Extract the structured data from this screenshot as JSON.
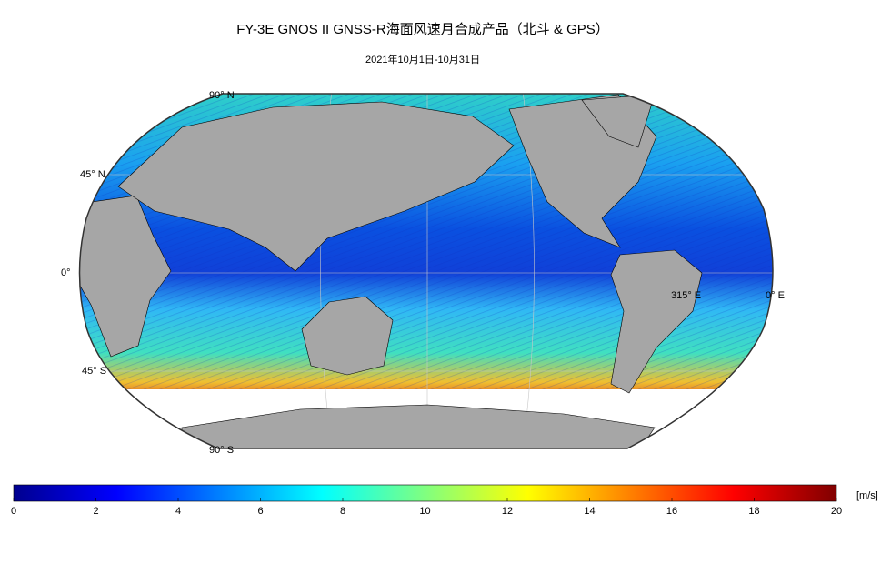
{
  "title": "FY-3E GNOS II GNSS-R海面风速月合成产品（北斗 & GPS）",
  "subtitle": "2021年10月1日-10月31日",
  "map": {
    "lat_labels": [
      "90° N",
      "45° N",
      "0°",
      "45° S",
      "90° S"
    ],
    "lon_labels": [
      "315° E",
      "0° E"
    ]
  },
  "colorbar": {
    "unit": "[m/s]",
    "range": [
      0,
      20
    ],
    "ticks": [
      0,
      2,
      4,
      6,
      8,
      10,
      12,
      14,
      16,
      18,
      20
    ],
    "colors": [
      "#00008f",
      "#0000ff",
      "#0080ff",
      "#00ffff",
      "#80ff80",
      "#ffff00",
      "#ff8000",
      "#ff0000",
      "#800000"
    ]
  }
}
